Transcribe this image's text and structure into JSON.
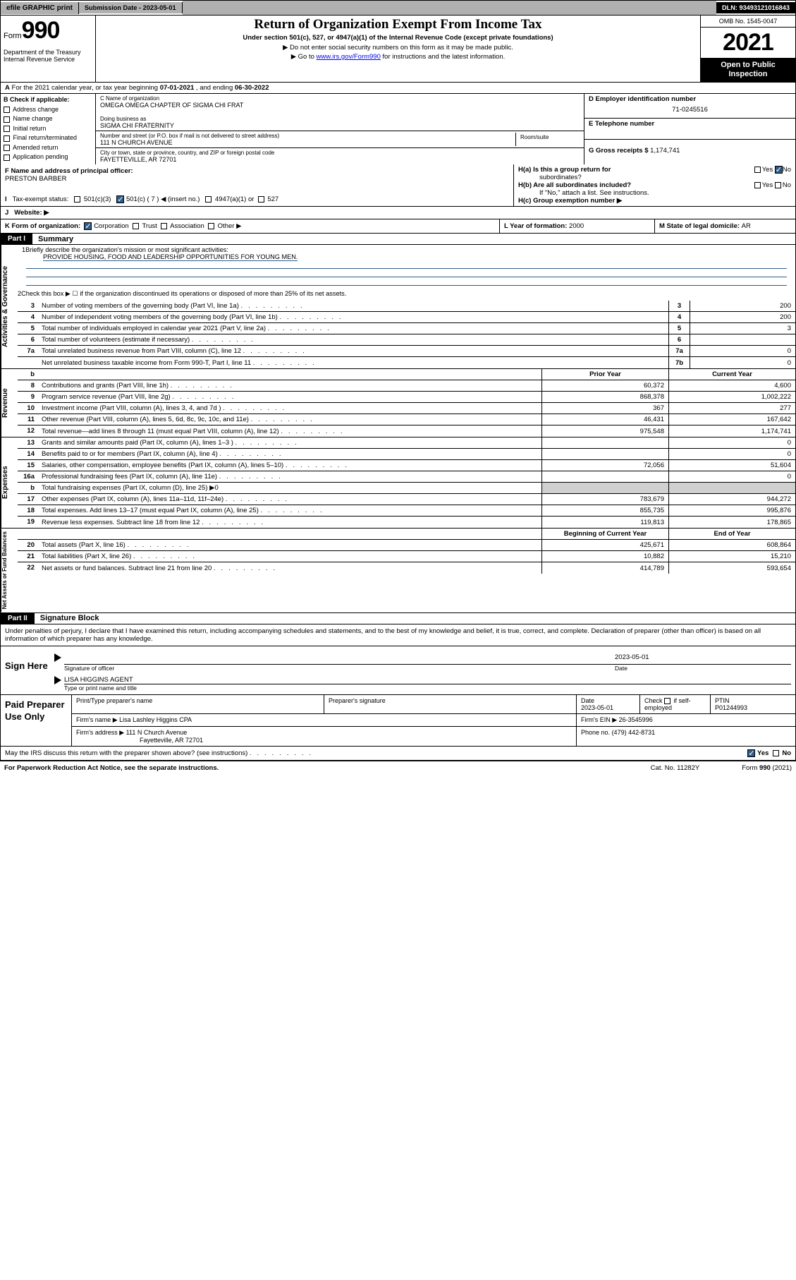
{
  "topbar": {
    "efile": "efile GRAPHIC print",
    "subdate_lbl": "Submission Date - ",
    "subdate": "2023-05-01",
    "dln_lbl": "DLN: ",
    "dln": "93493121016843"
  },
  "header": {
    "form_word": "Form",
    "form_num": "990",
    "dept": "Department of the Treasury",
    "irs": "Internal Revenue Service",
    "title": "Return of Organization Exempt From Income Tax",
    "sub": "Under section 501(c), 527, or 4947(a)(1) of the Internal Revenue Code (except private foundations)",
    "arrow1": "▶ Do not enter social security numbers on this form as it may be made public.",
    "arrow2a": "▶ Go to ",
    "arrow2link": "www.irs.gov/Form990",
    "arrow2b": " for instructions and the latest information.",
    "omb": "OMB No. 1545-0047",
    "year": "2021",
    "open": "Open to Public Inspection"
  },
  "A": {
    "text": "For the 2021 calendar year, or tax year beginning ",
    "beg": "07-01-2021",
    "mid": " , and ending ",
    "end": "06-30-2022"
  },
  "B": {
    "hdr": "B Check if applicable:",
    "items": [
      "Address change",
      "Name change",
      "Initial return",
      "Final return/terminated",
      "Amended return",
      "Application pending"
    ]
  },
  "C": {
    "name_lbl": "C Name of organization",
    "name": "OMEGA OMEGA CHAPTER OF SIGMA CHI FRAT",
    "dba_lbl": "Doing business as",
    "dba": "SIGMA CHI FRATERNITY",
    "street_lbl": "Number and street (or P.O. box if mail is not delivered to street address)",
    "street": "111 N CHURCH AVENUE",
    "room_lbl": "Room/suite",
    "city_lbl": "City or town, state or province, country, and ZIP or foreign postal code",
    "city": "FAYETTEVILLE, AR  72701"
  },
  "D": {
    "lbl": "D Employer identification number",
    "val": "71-0245516"
  },
  "E": {
    "lbl": "E Telephone number",
    "val": ""
  },
  "G": {
    "lbl": "G Gross receipts $",
    "val": "1,174,741"
  },
  "F": {
    "lbl": "F  Name and address of principal officer:",
    "val": "PRESTON BARBER"
  },
  "H": {
    "a": "H(a)  Is this a group return for",
    "a2": "subordinates?",
    "b": "H(b)  Are all subordinates included?",
    "bnote": "If \"No,\" attach a list. See instructions.",
    "c": "H(c)  Group exemption number ▶",
    "yes": "Yes",
    "no": "No"
  },
  "I": {
    "lbl": "Tax-exempt status:",
    "c3": "501(c)(3)",
    "c": "501(c) ( 7 ) ◀ (insert no.)",
    "a1": "4947(a)(1) or",
    "s527": "527"
  },
  "J": {
    "lbl": "Website: ▶",
    "val": ""
  },
  "K": {
    "lbl": "K Form of organization:",
    "corp": "Corporation",
    "trust": "Trust",
    "assoc": "Association",
    "other": "Other ▶"
  },
  "L": {
    "lbl": "L Year of formation: ",
    "val": "2000"
  },
  "M": {
    "lbl": "M State of legal domicile: ",
    "val": "AR"
  },
  "part1": {
    "hdr": "Part I",
    "title": "Summary"
  },
  "summary": {
    "l1": "Briefly describe the organization's mission or most significant activities:",
    "mission": "PROVIDE HOUSING, FOOD AND LEADERSHIP OPPORTUNITIES FOR YOUNG MEN.",
    "l2": "Check this box ▶ ☐  if the organization discontinued its operations or disposed of more than 25% of its net assets.",
    "rows_gov": [
      {
        "n": "3",
        "d": "Number of voting members of the governing body (Part VI, line 1a)",
        "b": "3",
        "v": "200"
      },
      {
        "n": "4",
        "d": "Number of independent voting members of the governing body (Part VI, line 1b)",
        "b": "4",
        "v": "200"
      },
      {
        "n": "5",
        "d": "Total number of individuals employed in calendar year 2021 (Part V, line 2a)",
        "b": "5",
        "v": "3"
      },
      {
        "n": "6",
        "d": "Total number of volunteers (estimate if necessary)",
        "b": "6",
        "v": ""
      },
      {
        "n": "7a",
        "d": "Total unrelated business revenue from Part VIII, column (C), line 12",
        "b": "7a",
        "v": "0"
      },
      {
        "n": "",
        "d": "Net unrelated business taxable income from Form 990-T, Part I, line 11",
        "b": "7b",
        "v": "0"
      }
    ],
    "colhdr": {
      "b": "b",
      "prior": "Prior Year",
      "current": "Current Year"
    },
    "rows_rev": [
      {
        "n": "8",
        "d": "Contributions and grants (Part VIII, line 1h)",
        "p": "60,372",
        "c": "4,600"
      },
      {
        "n": "9",
        "d": "Program service revenue (Part VIII, line 2g)",
        "p": "868,378",
        "c": "1,002,222"
      },
      {
        "n": "10",
        "d": "Investment income (Part VIII, column (A), lines 3, 4, and 7d )",
        "p": "367",
        "c": "277"
      },
      {
        "n": "11",
        "d": "Other revenue (Part VIII, column (A), lines 5, 6d, 8c, 9c, 10c, and 11e)",
        "p": "46,431",
        "c": "167,642"
      },
      {
        "n": "12",
        "d": "Total revenue—add lines 8 through 11 (must equal Part VIII, column (A), line 12)",
        "p": "975,548",
        "c": "1,174,741"
      }
    ],
    "rows_exp": [
      {
        "n": "13",
        "d": "Grants and similar amounts paid (Part IX, column (A), lines 1–3 )",
        "p": "",
        "c": "0"
      },
      {
        "n": "14",
        "d": "Benefits paid to or for members (Part IX, column (A), line 4)",
        "p": "",
        "c": "0"
      },
      {
        "n": "15",
        "d": "Salaries, other compensation, employee benefits (Part IX, column (A), lines 5–10)",
        "p": "72,056",
        "c": "51,604"
      },
      {
        "n": "16a",
        "d": "Professional fundraising fees (Part IX, column (A), line 11e)",
        "p": "",
        "c": "0"
      },
      {
        "n": "b",
        "d": "Total fundraising expenses (Part IX, column (D), line 25) ▶0",
        "p": "grey",
        "c": "grey"
      },
      {
        "n": "17",
        "d": "Other expenses (Part IX, column (A), lines 11a–11d, 11f–24e)",
        "p": "783,679",
        "c": "944,272"
      },
      {
        "n": "18",
        "d": "Total expenses. Add lines 13–17 (must equal Part IX, column (A), line 25)",
        "p": "855,735",
        "c": "995,876"
      },
      {
        "n": "19",
        "d": "Revenue less expenses. Subtract line 18 from line 12",
        "p": "119,813",
        "c": "178,865"
      }
    ],
    "colhdr2": {
      "prior": "Beginning of Current Year",
      "current": "End of Year"
    },
    "rows_net": [
      {
        "n": "20",
        "d": "Total assets (Part X, line 16)",
        "p": "425,671",
        "c": "608,864"
      },
      {
        "n": "21",
        "d": "Total liabilities (Part X, line 26)",
        "p": "10,882",
        "c": "15,210"
      },
      {
        "n": "22",
        "d": "Net assets or fund balances. Subtract line 21 from line 20",
        "p": "414,789",
        "c": "593,654"
      }
    ],
    "sidelabels": {
      "gov": "Activities & Governance",
      "rev": "Revenue",
      "exp": "Expenses",
      "net": "Net Assets or Fund Balances"
    }
  },
  "part2": {
    "hdr": "Part II",
    "title": "Signature Block",
    "decl": "Under penalties of perjury, I declare that I have examined this return, including accompanying schedules and statements, and to the best of my knowledge and belief, it is true, correct, and complete. Declaration of preparer (other than officer) is based on all information of which preparer has any knowledge."
  },
  "sign": {
    "here": "Sign Here",
    "sig_lbl": "Signature of officer",
    "date_lbl": "Date",
    "date": "2023-05-01",
    "name": "LISA HIGGINS  AGENT",
    "name_lbl": "Type or print name and title"
  },
  "paid": {
    "title": "Paid Preparer Use Only",
    "h1": "Print/Type preparer's name",
    "h2": "Preparer's signature",
    "h3": "Date",
    "h3v": "2023-05-01",
    "h4a": "Check",
    "h4b": "if self-employed",
    "h5": "PTIN",
    "h5v": "P01244993",
    "firm_lbl": "Firm's name   ▶",
    "firm": "Lisa Lashley Higgins CPA",
    "ein_lbl": "Firm's EIN ▶",
    "ein": "26-3545996",
    "addr_lbl": "Firm's address ▶",
    "addr1": "111 N Church Avenue",
    "addr2": "Fayetteville, AR  72701",
    "phone_lbl": "Phone no.",
    "phone": "(479) 442-8731"
  },
  "may": {
    "text": "May the IRS discuss this return with the preparer shown above? (see instructions)",
    "yes": "Yes",
    "no": "No"
  },
  "footer": {
    "l": "For Paperwork Reduction Act Notice, see the separate instructions.",
    "c": "Cat. No. 11282Y",
    "r": "Form 990 (2021)"
  }
}
